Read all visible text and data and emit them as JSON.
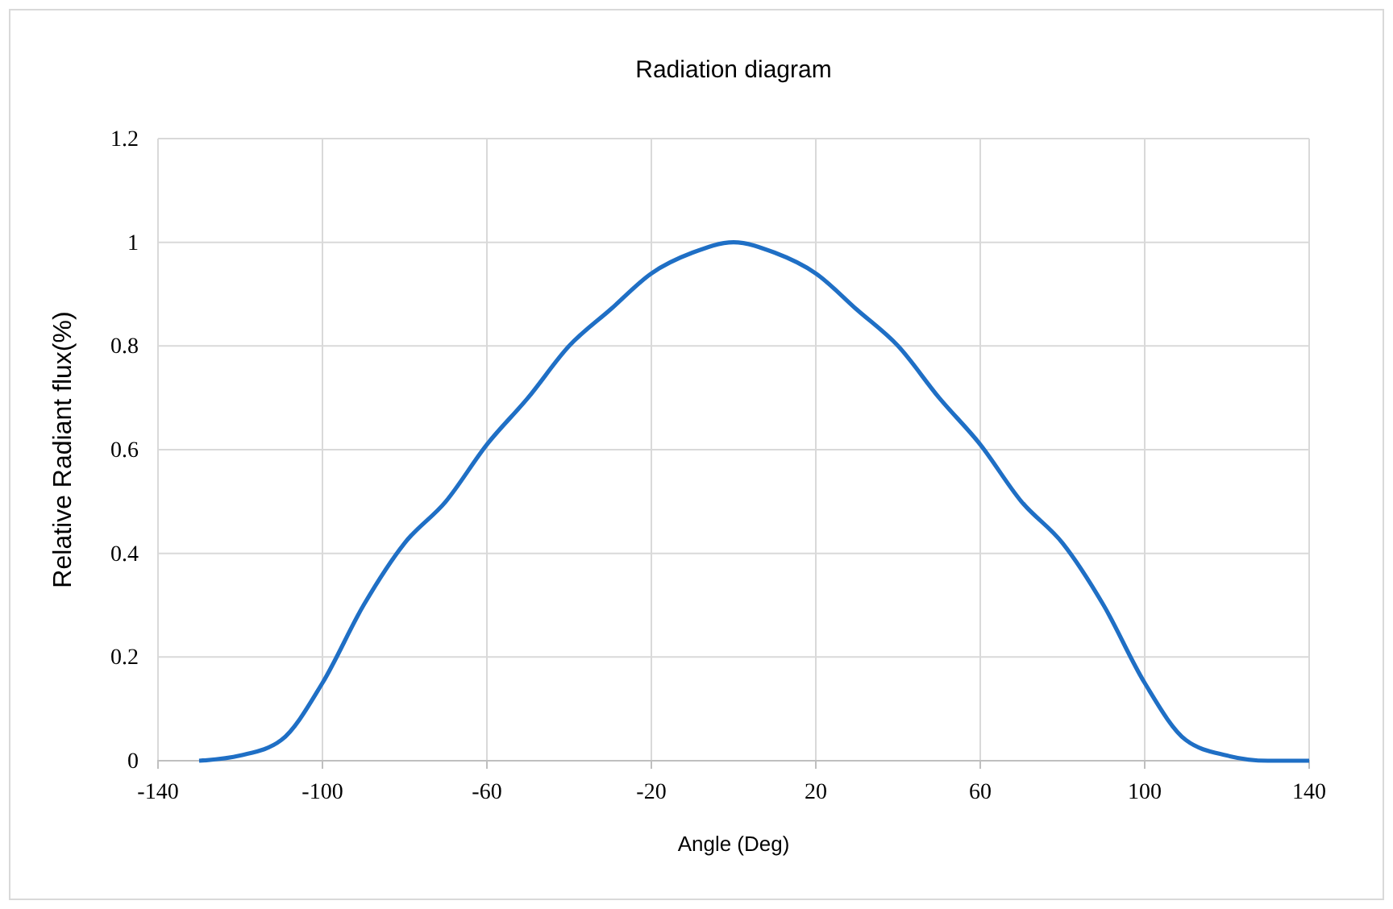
{
  "chart_data": {
    "type": "line",
    "title": "Radiation diagram",
    "xlabel": "Angle (Deg)",
    "ylabel": "Relative Radiant flux(%)",
    "x": [
      -130,
      -120,
      -110,
      -100,
      -90,
      -80,
      -70,
      -60,
      -50,
      -40,
      -30,
      -20,
      -10,
      0,
      10,
      20,
      30,
      40,
      50,
      60,
      70,
      80,
      90,
      100,
      110,
      120,
      130,
      140
    ],
    "series": [
      {
        "color": "#1f6fc5",
        "values": [
          0,
          0.01,
          0.04,
          0.15,
          0.3,
          0.42,
          0.5,
          0.61,
          0.7,
          0.8,
          0.87,
          0.94,
          0.98,
          1,
          0.98,
          0.94,
          0.87,
          0.8,
          0.7,
          0.61,
          0.5,
          0.42,
          0.3,
          0.15,
          0.04,
          0.01,
          0,
          0
        ]
      }
    ],
    "xlim": [
      -140,
      140
    ],
    "xticks": [
      -140,
      -100,
      -60,
      -20,
      20,
      60,
      100,
      140
    ],
    "ylim": [
      0,
      1.2
    ],
    "yticks": [
      0,
      0.2,
      0.4,
      0.6,
      0.8,
      1,
      1.2
    ],
    "grid": true,
    "marker": "none",
    "line_style": "solid"
  }
}
